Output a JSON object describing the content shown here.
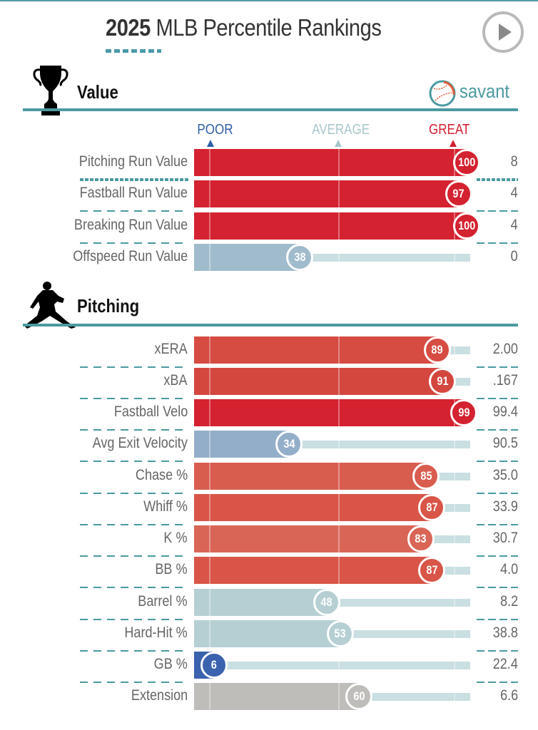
{
  "header": {
    "title_year": "2025",
    "title_rest": " MLB Percentile Rankings",
    "play_button": "play-icon"
  },
  "brand": {
    "name": "savant",
    "icon": "baseball-icon"
  },
  "axis": {
    "poor": "POOR",
    "average": "AVERAGE",
    "great": "GREAT",
    "poor_color": "#2f5ea8",
    "average_color": "#a7c7cb",
    "great_color": "#d22030"
  },
  "sections": {
    "value": {
      "title": "Value",
      "icon": "trophy-icon"
    },
    "pitching": {
      "title": "Pitching",
      "icon": "pitcher-icon"
    }
  },
  "chart_data": [
    {
      "type": "bar",
      "title": "Value",
      "orientation": "horizontal",
      "xlim": [
        0,
        100
      ],
      "axis_labels": [
        "POOR",
        "AVERAGE",
        "GREAT"
      ],
      "categories": [
        "Pitching Run Value",
        "Fastball Run Value",
        "Breaking Run Value",
        "Offspeed Run Value"
      ],
      "percentiles": [
        100,
        97,
        100,
        38
      ],
      "values": [
        "8",
        "4",
        "4",
        "0"
      ],
      "colors": [
        "#d42230",
        "#d42230",
        "#d42230",
        "#a0bccc"
      ]
    },
    {
      "type": "bar",
      "title": "Pitching",
      "orientation": "horizontal",
      "xlim": [
        0,
        100
      ],
      "categories": [
        "xERA",
        "xBA",
        "Fastball Velo",
        "Avg Exit Velocity",
        "Chase %",
        "Whiff %",
        "K %",
        "BB %",
        "Barrel %",
        "Hard-Hit %",
        "GB %",
        "Extension"
      ],
      "percentiles": [
        89,
        91,
        99,
        34,
        85,
        87,
        83,
        87,
        48,
        53,
        6,
        60
      ],
      "values": [
        "2.00",
        ".167",
        "99.4",
        "90.5",
        "35.0",
        "33.9",
        "30.7",
        "4.0",
        "8.2",
        "38.8",
        "22.4",
        "6.6"
      ],
      "colors": [
        "#d64b42",
        "#d4473f",
        "#d42230",
        "#93aec8",
        "#d95d4f",
        "#d85547",
        "#d96556",
        "#d85547",
        "#b5cfd3",
        "#b5cfd3",
        "#3a62ae",
        "#bfbdba"
      ]
    }
  ]
}
